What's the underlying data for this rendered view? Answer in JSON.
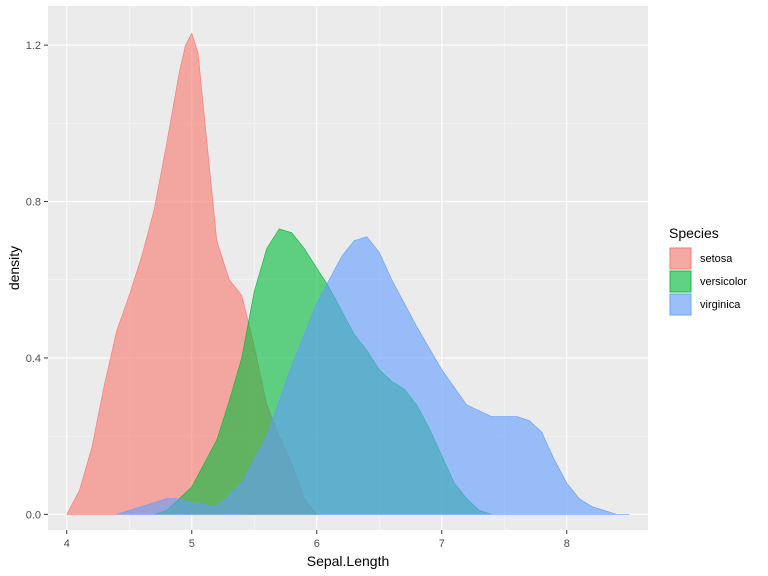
{
  "chart_data": {
    "type": "area",
    "xlabel": "Sepal.Length",
    "ylabel": "density",
    "xlim": [
      3.85,
      8.65
    ],
    "ylim": [
      -0.04,
      1.3
    ],
    "x_ticks": [
      "4",
      "5",
      "6",
      "7",
      "8"
    ],
    "y_ticks": [
      "0.0",
      "0.4",
      "0.8",
      "1.2"
    ],
    "grid": true,
    "legend": {
      "title": "Species",
      "position": "right"
    },
    "series": [
      {
        "name": "setosa",
        "color": "#F8766D",
        "x": [
          4.0,
          4.1,
          4.2,
          4.3,
          4.4,
          4.5,
          4.6,
          4.7,
          4.8,
          4.9,
          4.95,
          5.0,
          5.05,
          5.1,
          5.2,
          5.3,
          5.4,
          5.5,
          5.6,
          5.7,
          5.8,
          5.9,
          6.0
        ],
        "y": [
          0.0,
          0.06,
          0.17,
          0.33,
          0.47,
          0.56,
          0.66,
          0.78,
          0.95,
          1.13,
          1.2,
          1.23,
          1.18,
          1.02,
          0.7,
          0.6,
          0.56,
          0.43,
          0.28,
          0.2,
          0.13,
          0.04,
          0.0
        ]
      },
      {
        "name": "versicolor",
        "color": "#00BA38",
        "x": [
          4.7,
          4.8,
          4.9,
          5.0,
          5.1,
          5.2,
          5.3,
          5.4,
          5.5,
          5.6,
          5.7,
          5.8,
          5.9,
          6.0,
          6.1,
          6.2,
          6.3,
          6.4,
          6.5,
          6.6,
          6.7,
          6.8,
          6.9,
          7.0,
          7.1,
          7.2,
          7.3,
          7.4
        ],
        "y": [
          0.0,
          0.01,
          0.04,
          0.07,
          0.13,
          0.19,
          0.29,
          0.4,
          0.57,
          0.68,
          0.73,
          0.72,
          0.68,
          0.63,
          0.58,
          0.52,
          0.46,
          0.42,
          0.37,
          0.34,
          0.32,
          0.28,
          0.22,
          0.15,
          0.08,
          0.04,
          0.01,
          0.0
        ]
      },
      {
        "name": "virginica",
        "color": "#619CFF",
        "x": [
          4.4,
          4.6,
          4.8,
          4.9,
          5.0,
          5.2,
          5.4,
          5.6,
          5.8,
          6.0,
          6.2,
          6.3,
          6.4,
          6.5,
          6.6,
          6.8,
          7.0,
          7.2,
          7.4,
          7.6,
          7.7,
          7.8,
          7.9,
          8.0,
          8.1,
          8.2,
          8.3,
          8.4,
          8.5
        ],
        "y": [
          0.0,
          0.02,
          0.04,
          0.04,
          0.03,
          0.02,
          0.08,
          0.2,
          0.38,
          0.54,
          0.66,
          0.7,
          0.71,
          0.67,
          0.6,
          0.48,
          0.37,
          0.28,
          0.25,
          0.25,
          0.24,
          0.21,
          0.14,
          0.08,
          0.04,
          0.02,
          0.01,
          0.0,
          0.0
        ]
      }
    ]
  }
}
